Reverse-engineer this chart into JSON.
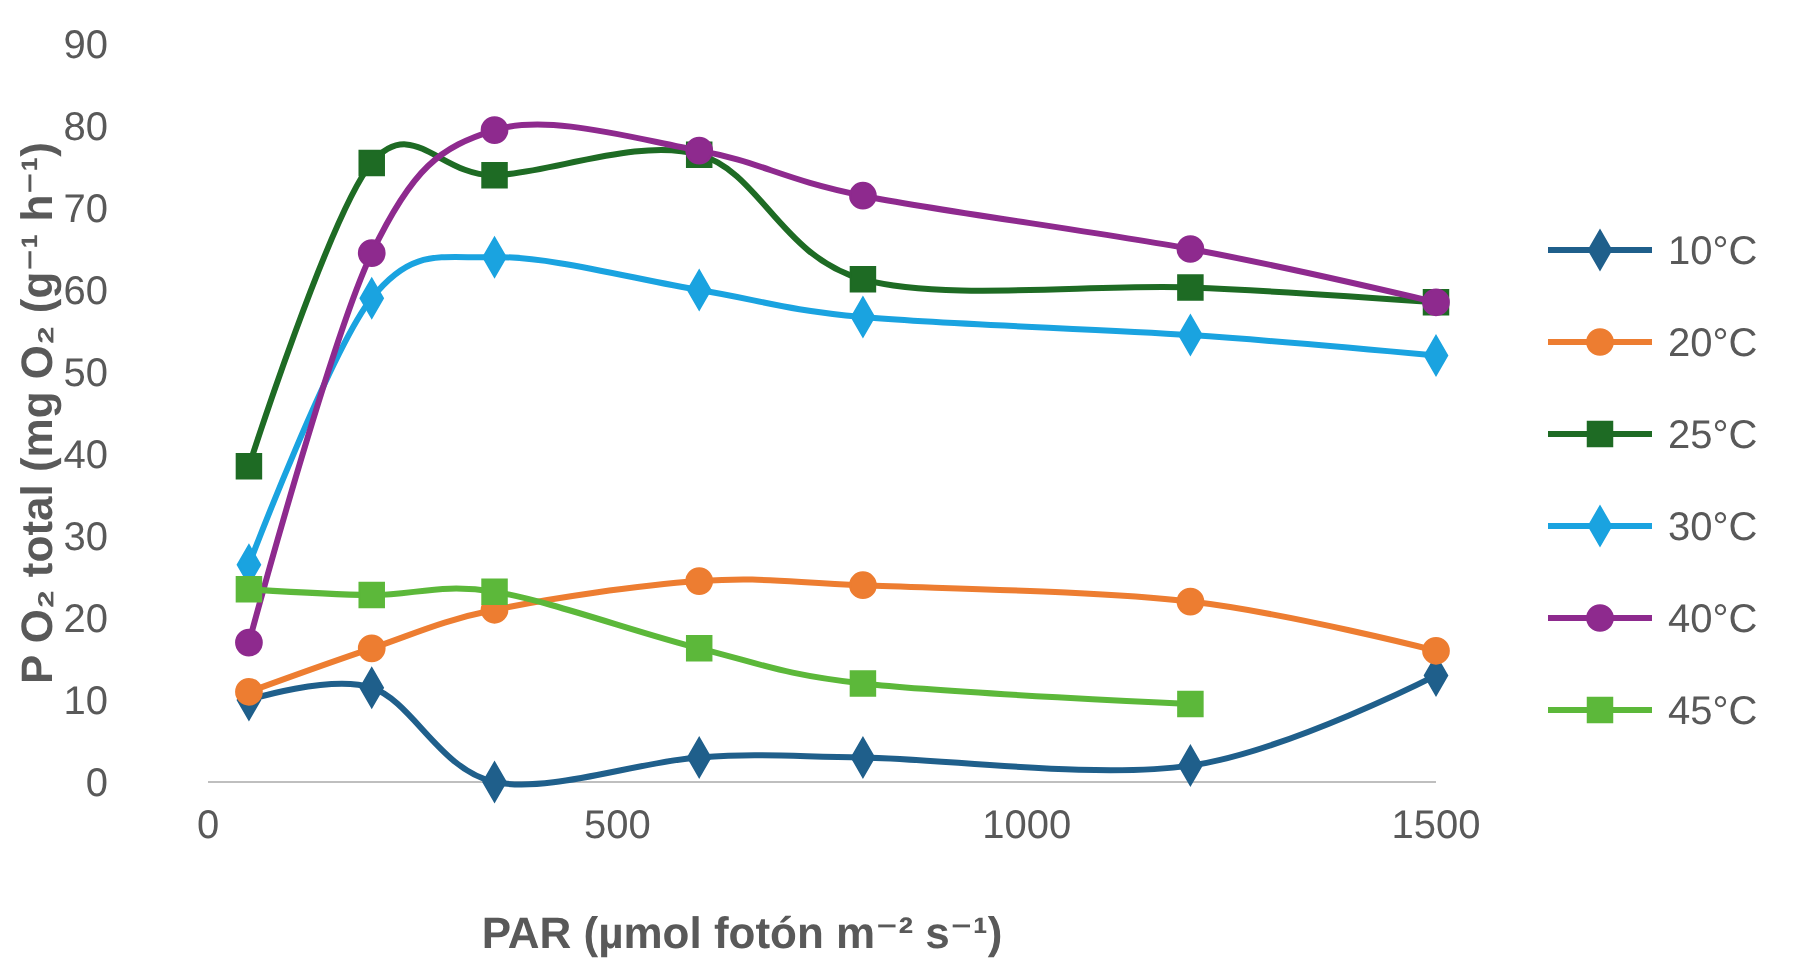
{
  "chart_data": {
    "type": "line",
    "xlabel": "PAR (µmol fotón m⁻² s⁻¹)",
    "ylabel": "P O₂ total (mg O₂ (g⁻¹ h⁻¹)",
    "x": [
      50,
      200,
      350,
      600,
      800,
      1200,
      1500
    ],
    "xlim": [
      0,
      1500
    ],
    "xticks": [
      0,
      500,
      1000,
      1500
    ],
    "ylim": [
      0,
      90
    ],
    "yticks": [
      0,
      10,
      20,
      30,
      40,
      50,
      60,
      70,
      80,
      90
    ],
    "legend": "right",
    "grid": false,
    "series": [
      {
        "name": "10°C",
        "color": "#1f5f8b",
        "marker": "diamond",
        "values": [
          10,
          11.5,
          0,
          3,
          3,
          2,
          13
        ]
      },
      {
        "name": "20°C",
        "color": "#ed7d31",
        "marker": "circle",
        "values": [
          11,
          16.3,
          21,
          24.5,
          24,
          22,
          16
        ]
      },
      {
        "name": "25°C",
        "color": "#1e6b24",
        "marker": "square",
        "values": [
          38.5,
          75.5,
          74,
          76.5,
          61.3,
          60.3,
          58.5
        ]
      },
      {
        "name": "30°C",
        "color": "#1aa3e0",
        "marker": "diamond",
        "values": [
          26.5,
          59,
          64,
          60,
          56.7,
          54.5,
          52
        ]
      },
      {
        "name": "40°C",
        "color": "#8e2a8e",
        "marker": "circle",
        "values": [
          17,
          64.5,
          79.5,
          77,
          71.5,
          65,
          58.5
        ]
      },
      {
        "name": "45°C",
        "color": "#5cb83a",
        "marker": "square",
        "values": [
          23.5,
          22.8,
          23.2,
          16.3,
          12,
          9.5,
          null
        ]
      }
    ]
  }
}
